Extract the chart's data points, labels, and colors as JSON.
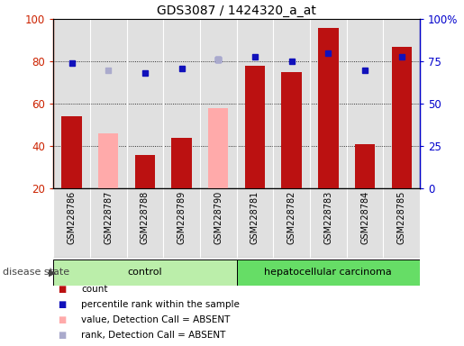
{
  "title": "GDS3087 / 1424320_a_at",
  "samples": [
    "GSM228786",
    "GSM228787",
    "GSM228788",
    "GSM228789",
    "GSM228790",
    "GSM228781",
    "GSM228782",
    "GSM228783",
    "GSM228784",
    "GSM228785"
  ],
  "bar_values": [
    54,
    null,
    36,
    44,
    null,
    78,
    75,
    96,
    41,
    87
  ],
  "bar_absent_values": [
    null,
    46,
    null,
    null,
    58,
    null,
    null,
    null,
    null,
    null
  ],
  "percentile_values": [
    74,
    null,
    68,
    71,
    76,
    78,
    75,
    80,
    70,
    78
  ],
  "percentile_absent_values": [
    null,
    70,
    null,
    null,
    76,
    null,
    null,
    null,
    null,
    null
  ],
  "bar_color": "#bb1111",
  "bar_absent_color": "#ffaaaa",
  "percentile_color": "#1111bb",
  "percentile_absent_color": "#aaaacc",
  "ylim_left": [
    20,
    100
  ],
  "ylim_right": [
    0,
    100
  ],
  "yticks_left": [
    20,
    40,
    60,
    80,
    100
  ],
  "yticks_right": [
    0,
    25,
    50,
    75,
    100
  ],
  "ytick_labels_right": [
    "0",
    "25",
    "50",
    "75",
    "100%"
  ],
  "ctrl_color": "#bbeeaa",
  "hcc_color": "#66dd66",
  "disease_state_label": "disease state",
  "legend_items": [
    {
      "label": "count",
      "color": "#bb1111"
    },
    {
      "label": "percentile rank within the sample",
      "color": "#1111bb"
    },
    {
      "label": "value, Detection Call = ABSENT",
      "color": "#ffaaaa"
    },
    {
      "label": "rank, Detection Call = ABSENT",
      "color": "#aaaacc"
    }
  ]
}
